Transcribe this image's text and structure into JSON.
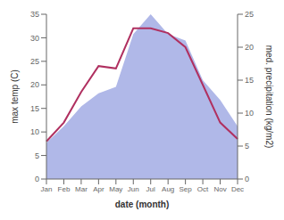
{
  "chart_data": {
    "type": "line",
    "xlabel": "date (month)",
    "ylabel": "max temp (C)",
    "y2label": "med. precipitation (kg/m2)",
    "categories": [
      "Jan",
      "Feb",
      "Mar",
      "Apr",
      "May",
      "Jun",
      "Jul",
      "Aug",
      "Sep",
      "Oct",
      "Nov",
      "Dec"
    ],
    "series": [
      {
        "type": "area",
        "axis": "y2",
        "color": "#b0b8e8",
        "values": [
          5.5,
          8.0,
          11.0,
          13.0,
          14.0,
          22.0,
          25.0,
          22.0,
          21.0,
          15.0,
          12.0,
          8.0
        ]
      },
      {
        "type": "line",
        "axis": "y",
        "color": "#b03060",
        "values": [
          8.0,
          12.0,
          18.5,
          24.0,
          23.5,
          32.0,
          32.0,
          31.0,
          28.0,
          20.0,
          12.0,
          8.5
        ]
      }
    ],
    "ylim": [
      0,
      35
    ],
    "yticks": [
      0,
      5,
      10,
      15,
      20,
      25,
      30,
      35
    ],
    "y2lim": [
      0,
      25
    ],
    "y2ticks": [
      0,
      5,
      10,
      15,
      20,
      25
    ],
    "grid": false
  }
}
